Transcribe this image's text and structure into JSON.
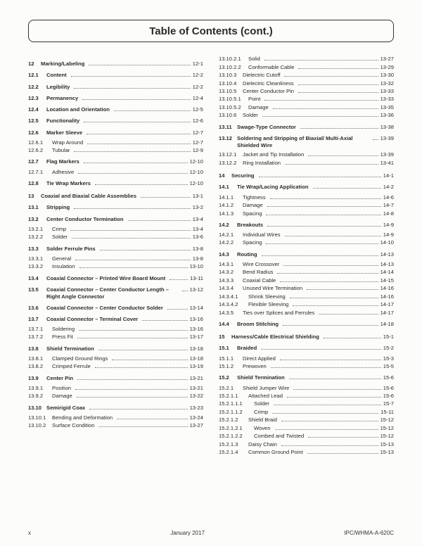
{
  "title": "Table of Contents (cont.)",
  "footer": {
    "left": "x",
    "center": "January 2017",
    "right": "IPC/WHMA-A-620C"
  },
  "left": [
    {
      "n": "12",
      "t": "Marking/Labeling",
      "p": "12-1",
      "lvl": 1,
      "bold": true,
      "cls": "sec"
    },
    {
      "n": "12.1",
      "t": "Content",
      "p": "12-2",
      "lvl": 2,
      "bold": true,
      "cls": "sub"
    },
    {
      "n": "12.2",
      "t": "Legibility",
      "p": "12-2",
      "lvl": 2,
      "bold": true,
      "cls": "sub"
    },
    {
      "n": "12.3",
      "t": "Permanency",
      "p": "12-4",
      "lvl": 2,
      "bold": true,
      "cls": "sub"
    },
    {
      "n": "12.4",
      "t": "Location and Orientation",
      "p": "12-5",
      "lvl": 2,
      "bold": true,
      "cls": "sub"
    },
    {
      "n": "12.5",
      "t": "Functionality",
      "p": "12-6",
      "lvl": 2,
      "bold": true,
      "cls": "sub"
    },
    {
      "n": "12.6",
      "t": "Marker Sleeve",
      "p": "12-7",
      "lvl": 2,
      "bold": true,
      "cls": "sub"
    },
    {
      "n": "12.6.1",
      "t": "Wrap Around",
      "p": "12-7",
      "lvl": 3,
      "cls": "subsub"
    },
    {
      "n": "12.6.2",
      "t": "Tubular",
      "p": "12-9",
      "lvl": 3,
      "cls": "subsub"
    },
    {
      "n": "12.7",
      "t": "Flag Markers",
      "p": "12-10",
      "lvl": 2,
      "bold": true,
      "cls": "sub"
    },
    {
      "n": "12.7.1",
      "t": "Adhesive",
      "p": "12-10",
      "lvl": 3,
      "cls": "subsub"
    },
    {
      "n": "12.8",
      "t": "Tie Wrap Markers",
      "p": "12-10",
      "lvl": 2,
      "bold": true,
      "cls": "sub"
    },
    {
      "n": "13",
      "t": "Coaxial and Biaxial Cable Assemblies",
      "p": "13-1",
      "lvl": 1,
      "bold": true,
      "cls": "sec"
    },
    {
      "n": "13.1",
      "t": "Stripping",
      "p": "13-2",
      "lvl": 2,
      "bold": true,
      "cls": "sub"
    },
    {
      "n": "13.2",
      "t": "Center Conductor Termination",
      "p": "13-4",
      "lvl": 2,
      "bold": true,
      "cls": "sub"
    },
    {
      "n": "13.2.1",
      "t": "Crimp",
      "p": "13-4",
      "lvl": 3,
      "cls": "subsub"
    },
    {
      "n": "13.2.2",
      "t": "Solder",
      "p": "13-6",
      "lvl": 3,
      "cls": "subsub"
    },
    {
      "n": "13.3",
      "t": "Solder Ferrule Pins",
      "p": "13-8",
      "lvl": 2,
      "bold": true,
      "cls": "sub"
    },
    {
      "n": "13.3.1",
      "t": "General",
      "p": "13-8",
      "lvl": 3,
      "cls": "subsub"
    },
    {
      "n": "13.3.2",
      "t": "Insulation",
      "p": "13-10",
      "lvl": 3,
      "cls": "subsub"
    },
    {
      "n": "13.4",
      "t": "Coaxial Connector – Printed Wire Board Mount",
      "p": "13-11",
      "lvl": 2,
      "bold": true,
      "cls": "sub",
      "multi": true
    },
    {
      "n": "13.5",
      "t": "Coaxial Connector – Center Conductor Length – Right Angle Connector",
      "p": "13-12",
      "lvl": 2,
      "bold": true,
      "cls": "sub",
      "multi": true
    },
    {
      "n": "13.6",
      "t": "Coaxial Connector – Center Conductor Solder",
      "p": "13-14",
      "lvl": 2,
      "bold": true,
      "cls": "sub",
      "multi": true
    },
    {
      "n": "13.7",
      "t": "Coaxial Connector – Terminal Cover",
      "p": "13-16",
      "lvl": 2,
      "bold": true,
      "cls": "sub"
    },
    {
      "n": "13.7.1",
      "t": "Soldering",
      "p": "13-16",
      "lvl": 3,
      "cls": "subsub"
    },
    {
      "n": "13.7.2",
      "t": "Press Fit",
      "p": "13-17",
      "lvl": 3,
      "cls": "subsub"
    },
    {
      "n": "13.8",
      "t": "Shield Termination",
      "p": "13-18",
      "lvl": 2,
      "bold": true,
      "cls": "sub"
    },
    {
      "n": "13.8.1",
      "t": "Clamped Ground Rings",
      "p": "13-18",
      "lvl": 3,
      "cls": "subsub"
    },
    {
      "n": "13.8.2",
      "t": "Crimped Ferrule",
      "p": "13-19",
      "lvl": 3,
      "cls": "subsub"
    },
    {
      "n": "13.9",
      "t": "Center Pin",
      "p": "13-21",
      "lvl": 2,
      "bold": true,
      "cls": "sub"
    },
    {
      "n": "13.9.1",
      "t": "Position",
      "p": "13-21",
      "lvl": 3,
      "cls": "subsub"
    },
    {
      "n": "13.9.2",
      "t": "Damage",
      "p": "13-22",
      "lvl": 3,
      "cls": "subsub"
    },
    {
      "n": "13.10",
      "t": "Semirigid Coax",
      "p": "13-23",
      "lvl": 2,
      "bold": true,
      "cls": "sub"
    },
    {
      "n": "13.10.1",
      "t": "Bending and Deformation",
      "p": "13-24",
      "lvl": 3,
      "cls": "subsub"
    },
    {
      "n": "13.10.2",
      "t": "Surface Condition",
      "p": "13-27",
      "lvl": 3,
      "cls": "subsub"
    }
  ],
  "right": [
    {
      "n": "13.10.2.1",
      "t": "Solid",
      "p": "13-27",
      "lvl": 4,
      "cls": "subsub"
    },
    {
      "n": "13.10.2.2",
      "t": "Conformable Cable",
      "p": "13-29",
      "lvl": 4,
      "cls": "subsub"
    },
    {
      "n": "13.10.3",
      "t": "Dielectric Cutoff",
      "p": "13-30",
      "lvl": 3,
      "cls": "subsub"
    },
    {
      "n": "13.10.4",
      "t": "Dielectric Cleanliness",
      "p": "13-32",
      "lvl": 3,
      "cls": "subsub"
    },
    {
      "n": "13.10.5",
      "t": "Center Conductor Pin",
      "p": "13-33",
      "lvl": 3,
      "cls": "subsub"
    },
    {
      "n": "13.10.5.1",
      "t": "Point",
      "p": "13-33",
      "lvl": 4,
      "cls": "subsub"
    },
    {
      "n": "13.10.5.2",
      "t": "Damage",
      "p": "13-35",
      "lvl": 4,
      "cls": "subsub"
    },
    {
      "n": "13.10.6",
      "t": "Solder",
      "p": "13-36",
      "lvl": 3,
      "cls": "subsub"
    },
    {
      "n": "13.11",
      "t": "Swage-Type Connector",
      "p": "13-38",
      "lvl": 2,
      "bold": true,
      "cls": "sub"
    },
    {
      "n": "13.12",
      "t": "Soldering and Stripping of Biaxial/ Multi-Axial Shielded Wire",
      "p": "13-39",
      "lvl": 2,
      "bold": true,
      "cls": "sub",
      "multi": true
    },
    {
      "n": "13.12.1",
      "t": "Jacket and Tip Installation",
      "p": "13-39",
      "lvl": 3,
      "cls": "subsub"
    },
    {
      "n": "13.12.2",
      "t": "Ring Installation",
      "p": "13-41",
      "lvl": 3,
      "cls": "subsub"
    },
    {
      "n": "14",
      "t": "Securing",
      "p": "14-1",
      "lvl": 1,
      "bold": true,
      "cls": "sec"
    },
    {
      "n": "14.1",
      "t": "Tie Wrap/Lacing Application",
      "p": "14-2",
      "lvl": 2,
      "bold": true,
      "cls": "sub"
    },
    {
      "n": "14.1.1",
      "t": "Tightness",
      "p": "14-6",
      "lvl": 3,
      "cls": "subsub"
    },
    {
      "n": "14.1.2",
      "t": "Damage",
      "p": "14-7",
      "lvl": 3,
      "cls": "subsub"
    },
    {
      "n": "14.1.3",
      "t": "Spacing",
      "p": "14-8",
      "lvl": 3,
      "cls": "subsub"
    },
    {
      "n": "14.2",
      "t": "Breakouts",
      "p": "14-9",
      "lvl": 2,
      "bold": true,
      "cls": "sub"
    },
    {
      "n": "14.2.1",
      "t": "Individual Wires",
      "p": "14-9",
      "lvl": 3,
      "cls": "subsub"
    },
    {
      "n": "14.2.2",
      "t": "Spacing",
      "p": "14-10",
      "lvl": 3,
      "cls": "subsub"
    },
    {
      "n": "14.3",
      "t": "Routing",
      "p": "14-13",
      "lvl": 2,
      "bold": true,
      "cls": "sub"
    },
    {
      "n": "14.3.1",
      "t": "Wire Crossover",
      "p": "14-13",
      "lvl": 3,
      "cls": "subsub"
    },
    {
      "n": "14.3.2",
      "t": "Bend Radius",
      "p": "14-14",
      "lvl": 3,
      "cls": "subsub"
    },
    {
      "n": "14.3.3",
      "t": "Coaxial Cable",
      "p": "14-15",
      "lvl": 3,
      "cls": "subsub"
    },
    {
      "n": "14.3.4",
      "t": "Unused Wire Termination",
      "p": "14-16",
      "lvl": 3,
      "cls": "subsub"
    },
    {
      "n": "14.3.4.1",
      "t": "Shrink Sleeving",
      "p": "14-16",
      "lvl": 4,
      "cls": "subsub"
    },
    {
      "n": "14.3.4.2",
      "t": "Flexible Sleeving",
      "p": "14-17",
      "lvl": 4,
      "cls": "subsub"
    },
    {
      "n": "14.3.5",
      "t": "Ties over Splices and Ferrules",
      "p": "14-17",
      "lvl": 3,
      "cls": "subsub"
    },
    {
      "n": "14.4",
      "t": "Broom Stitching",
      "p": "14-18",
      "lvl": 2,
      "bold": true,
      "cls": "sub"
    },
    {
      "n": "15",
      "t": "Harness/Cable Electrical Shielding",
      "p": "15-1",
      "lvl": 1,
      "bold": true,
      "cls": "sec"
    },
    {
      "n": "15.1",
      "t": "Braided",
      "p": "15-2",
      "lvl": 2,
      "bold": true,
      "cls": "sub"
    },
    {
      "n": "15.1.1",
      "t": "Direct Applied",
      "p": "15-3",
      "lvl": 3,
      "cls": "subsub"
    },
    {
      "n": "15.1.2",
      "t": "Prewoven",
      "p": "15-5",
      "lvl": 3,
      "cls": "subsub"
    },
    {
      "n": "15.2",
      "t": "Shield Termination",
      "p": "15-6",
      "lvl": 2,
      "bold": true,
      "cls": "sub"
    },
    {
      "n": "15.2.1",
      "t": "Shield Jumper Wire",
      "p": "15-6",
      "lvl": 3,
      "cls": "subsub"
    },
    {
      "n": "15.2.1.1",
      "t": "Attached Lead",
      "p": "15-6",
      "lvl": 4,
      "cls": "subsub"
    },
    {
      "n": "15.2.1.1.1",
      "t": "Solder",
      "p": "15-7",
      "lvl": 5,
      "cls": "subsub"
    },
    {
      "n": "15.2.1.1.2",
      "t": "Crimp",
      "p": "15-11",
      "lvl": 5,
      "cls": "subsub"
    },
    {
      "n": "15.2.1.2",
      "t": "Shield Braid",
      "p": "15-12",
      "lvl": 4,
      "cls": "subsub"
    },
    {
      "n": "15.2.1.2.1",
      "t": "Woven",
      "p": "15-12",
      "lvl": 5,
      "cls": "subsub"
    },
    {
      "n": "15.2.1.2.2",
      "t": "Combed and Twisted",
      "p": "15-12",
      "lvl": 5,
      "cls": "subsub"
    },
    {
      "n": "15.2.1.3",
      "t": "Daisy Chain",
      "p": "15-13",
      "lvl": 4,
      "cls": "subsub"
    },
    {
      "n": "15.2.1.4",
      "t": "Common Ground Point",
      "p": "15-13",
      "lvl": 4,
      "cls": "subsub"
    }
  ]
}
